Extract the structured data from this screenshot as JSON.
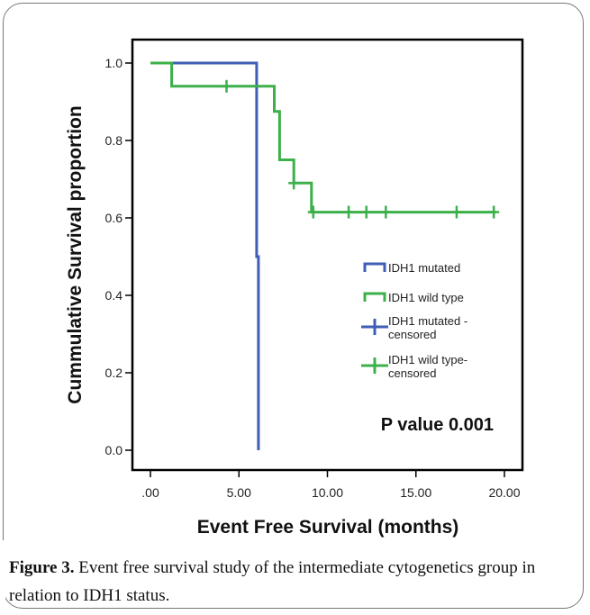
{
  "chart_data": {
    "type": "line",
    "title": "",
    "xlabel": "Event Free Survival (months)",
    "ylabel": "Cummulative Survival proportion",
    "xlim": [
      0,
      20
    ],
    "ylim": [
      0,
      1
    ],
    "x_ticks": [
      0,
      5,
      10,
      15,
      20
    ],
    "x_tick_labels": [
      ".00",
      "5.00",
      "10.00",
      "15.00",
      "20.00"
    ],
    "y_ticks": [
      0,
      0.2,
      0.4,
      0.6,
      0.8,
      1.0
    ],
    "y_tick_labels": [
      "0.0",
      "0.2",
      "0.4",
      "0.6",
      "0.8",
      "1.0"
    ],
    "legend_position": "right",
    "annotation": "P value 0.001",
    "series": [
      {
        "name": "IDH1 mutated",
        "color": "#3f5eb5",
        "step_points": [
          [
            0,
            1.0
          ],
          [
            6.0,
            1.0
          ],
          [
            6.0,
            0.5
          ],
          [
            6.1,
            0.5
          ],
          [
            6.1,
            0.0
          ]
        ]
      },
      {
        "name": "IDH1 wild type",
        "color": "#3cb04a",
        "step_points": [
          [
            0,
            1.0
          ],
          [
            1.2,
            1.0
          ],
          [
            1.2,
            0.94
          ],
          [
            7.0,
            0.94
          ],
          [
            7.0,
            0.875
          ],
          [
            7.3,
            0.875
          ],
          [
            7.3,
            0.75
          ],
          [
            8.1,
            0.75
          ],
          [
            8.1,
            0.69
          ],
          [
            9.1,
            0.69
          ],
          [
            9.1,
            0.615
          ],
          [
            19.5,
            0.615
          ]
        ]
      }
    ],
    "censored": [
      {
        "name": "IDH1 mutated - censored",
        "color": "#3f5eb5",
        "points": []
      },
      {
        "name": "IDH1 wild type- censored",
        "color": "#3cb04a",
        "points": [
          [
            4.3,
            0.94
          ],
          [
            8.1,
            0.69
          ],
          [
            9.2,
            0.615
          ],
          [
            11.2,
            0.615
          ],
          [
            12.2,
            0.615
          ],
          [
            13.3,
            0.615
          ],
          [
            17.3,
            0.615
          ],
          [
            19.4,
            0.615
          ]
        ]
      }
    ],
    "legend": [
      {
        "label": "IDH1 mutated",
        "line1": "IDH1 mutated",
        "line2": "",
        "color": "#3f5eb5",
        "symbol": "step"
      },
      {
        "label": "IDH1 wild type",
        "line1": "IDH1 wild type",
        "line2": "",
        "color": "#3cb04a",
        "symbol": "step"
      },
      {
        "label": "IDH1 mutated - censored",
        "line1": "IDH1 mutated -",
        "line2": "censored",
        "color": "#3f5eb5",
        "symbol": "cross"
      },
      {
        "label": "IDH1 wild type- censored",
        "line1": "IDH1 wild type-",
        "line2": "censored",
        "color": "#3cb04a",
        "symbol": "cross"
      }
    ]
  },
  "caption": {
    "label": "Figure 3.",
    "text": " Event free survival study of the intermediate cytogenetics group in relation to IDH1 status."
  }
}
